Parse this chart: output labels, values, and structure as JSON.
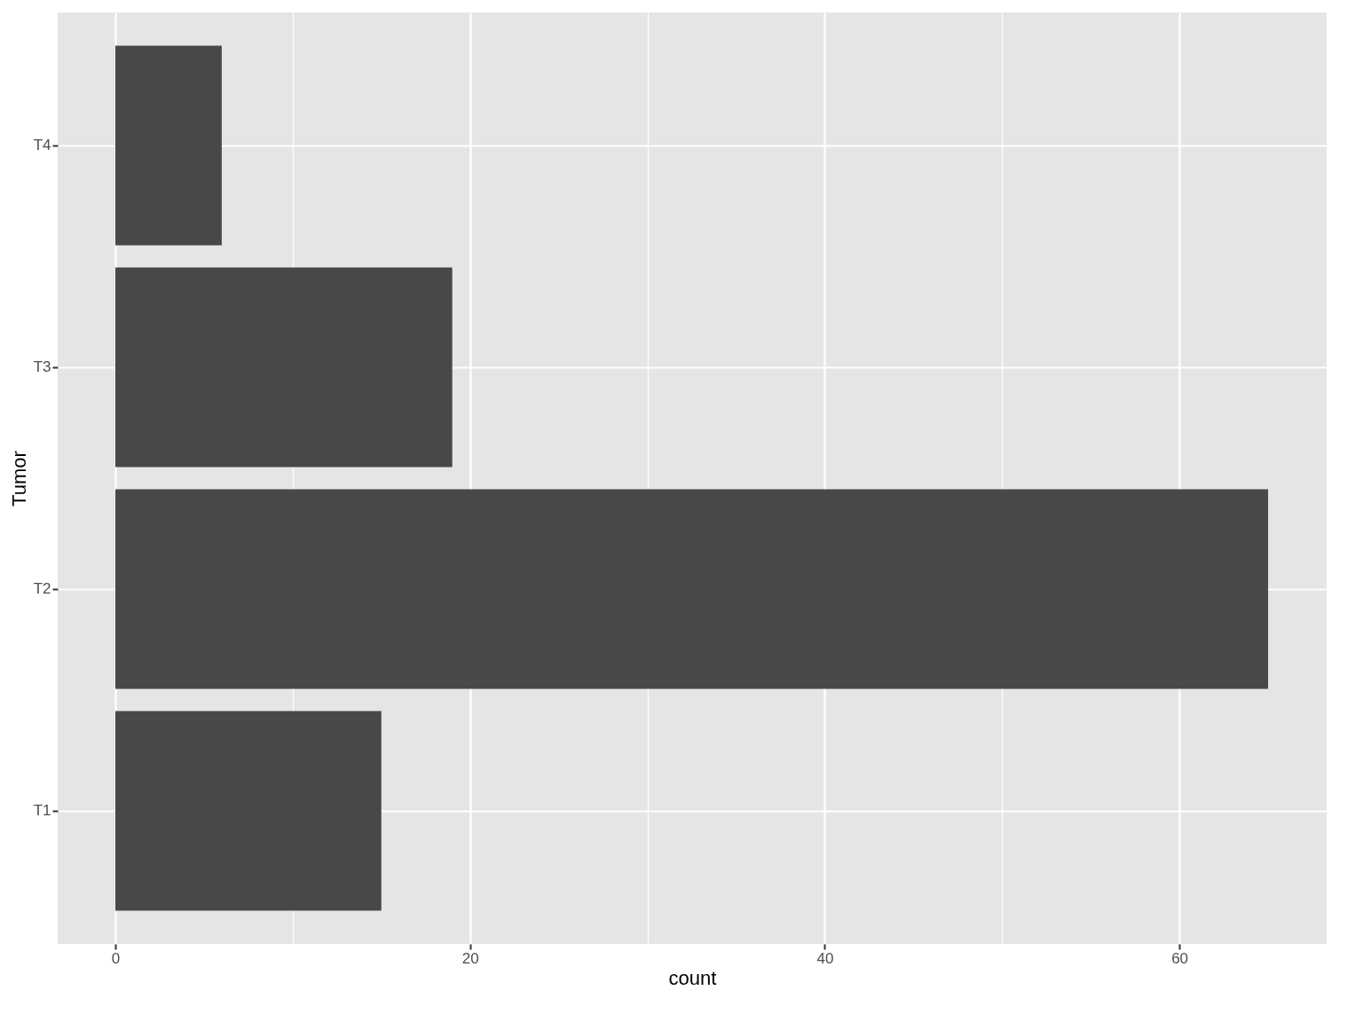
{
  "chart_data": {
    "type": "bar",
    "orientation": "horizontal",
    "xlabel": "count",
    "ylabel": "Tumor",
    "categories": [
      "T4",
      "T3",
      "T2",
      "T1"
    ],
    "values": [
      6,
      19,
      65,
      15
    ],
    "color": "#484848",
    "xlim": [
      -3.25,
      68.3
    ],
    "xticks": [
      0,
      {
        "value": 10,
        "label": null
      },
      20,
      {
        "value": 30,
        "label": null
      },
      40,
      {
        "value": 50,
        "label": null
      },
      60
    ],
    "grid": true
  }
}
